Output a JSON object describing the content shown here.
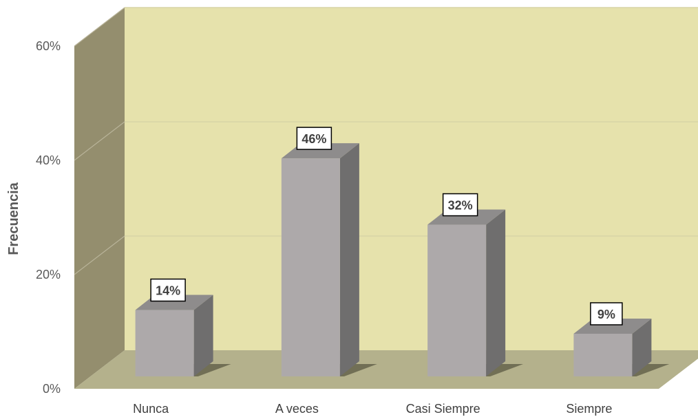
{
  "chart_data": {
    "type": "bar",
    "categories": [
      "Nunca",
      "A veces",
      "Casi Siempre",
      "Siempre"
    ],
    "values": [
      14,
      46,
      32,
      9
    ],
    "data_labels": [
      "14%",
      "46%",
      "32%",
      "9%"
    ],
    "title": "",
    "xlabel": "",
    "ylabel": "Frecuencia",
    "ylim": [
      0,
      60
    ],
    "y_ticks": [
      {
        "value": 0,
        "label": "0%"
      },
      {
        "value": 20,
        "label": "20%"
      },
      {
        "value": 40,
        "label": "40%"
      },
      {
        "value": 60,
        "label": "60%"
      }
    ],
    "grid": true,
    "style": "3d",
    "colors": {
      "bar_front": "#ada9aa",
      "bar_side": "#6f6e6e",
      "bar_top": "#8e8c8c",
      "back_wall": "#e6e2ac",
      "side_wall": "#948e6e",
      "floor": "#b4b18c",
      "grid": "#d7d4a6"
    }
  }
}
